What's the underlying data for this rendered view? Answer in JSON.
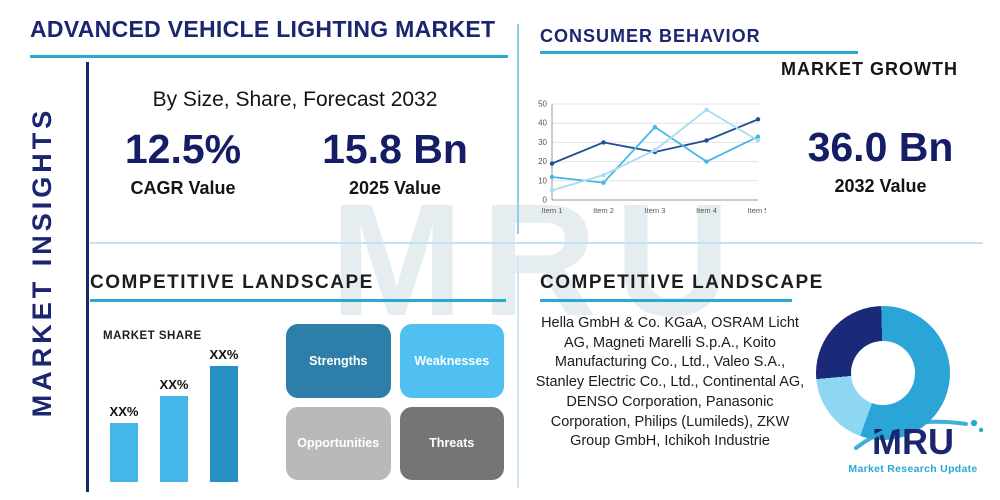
{
  "watermark": {
    "text": "MRU"
  },
  "sidebar": {
    "label": "MARKET INSIGHTS"
  },
  "header": {
    "title": "ADVANCED VEHICLE LIGHTING MARKET",
    "subtitle": "By Size, Share, Forecast 2032"
  },
  "stats": {
    "cagr": {
      "value": "12.5%",
      "label": "CAGR Value"
    },
    "y2025": {
      "value": "15.8 Bn",
      "label": "2025 Value"
    },
    "y2032": {
      "value": "36.0 Bn",
      "label": "2032 Value"
    }
  },
  "consumer_behavior": {
    "title": "CONSUMER BEHAVIOR",
    "subtitle": "MARKET GROWTH"
  },
  "chart_data": [
    {
      "type": "line",
      "title": "Consumer behavior / market growth trend",
      "x": [
        "Item 1",
        "Item 2",
        "Item 3",
        "Item 4",
        "Item 5"
      ],
      "series": [
        {
          "name": "series-dark-blue",
          "color": "#1f4e96",
          "values": [
            19,
            30,
            25,
            31,
            42
          ]
        },
        {
          "name": "series-light-blue",
          "color": "#45b6e8",
          "values": [
            12,
            9,
            38,
            20,
            33
          ]
        },
        {
          "name": "series-pale-blue",
          "color": "#a9dcf2",
          "values": [
            5,
            13,
            26,
            47,
            31
          ]
        }
      ],
      "ylim": [
        0,
        50
      ],
      "yticks": [
        0,
        10,
        20,
        30,
        40,
        50
      ],
      "grid": true,
      "xlabel": "",
      "ylabel": "",
      "legend": "none"
    },
    {
      "type": "bar",
      "title": "MARKET SHARE",
      "categories": [
        "bar-1",
        "bar-2",
        "bar-3"
      ],
      "labels": [
        "XX%",
        "XX%",
        "XX%"
      ],
      "values": [
        28,
        41,
        55
      ],
      "ylim": [
        0,
        56
      ],
      "colors": [
        "#45b6e8",
        "#45b6e8",
        "#2691c4"
      ],
      "grid": false
    },
    {
      "type": "pie",
      "title": "Competitive landscape share (donut)",
      "donut": true,
      "slices": [
        {
          "name": "segment-light-blue",
          "value": 18,
          "color": "#8ed7f3"
        },
        {
          "name": "segment-navy",
          "value": 26,
          "color": "#1b2a78"
        },
        {
          "name": "segment-teal",
          "value": 56,
          "color": "#2ba4d8"
        }
      ]
    }
  ],
  "landscape_left": {
    "title": "COMPETITIVE LANDSCAPE",
    "market_share_title": "MARKET SHARE",
    "swot": [
      {
        "label": "Strengths",
        "color": "#2d7fa9"
      },
      {
        "label": "Weaknesses",
        "color": "#4fc0ef"
      },
      {
        "label": "Opportunities",
        "color": "#b9b9b9"
      },
      {
        "label": "Threats",
        "color": "#757575"
      }
    ]
  },
  "landscape_right": {
    "title": "COMPETITIVE LANDSCAPE",
    "companies": "Hella GmbH & Co. KGaA, OSRAM Licht AG, Magneti Marelli S.p.A., Koito Manufacturing Co., Ltd., Valeo S.A., Stanley Electric Co., Ltd., Continental AG, DENSO Corporation, Panasonic Corporation, Philips (Lumileds), ZKW Group GmbH, Ichikoh Industrie"
  },
  "logo": {
    "text": "MRU",
    "tagline": "Market Research Update"
  },
  "colors": {
    "accent": "#2aa7d4",
    "navy": "#1b2570",
    "stat_navy": "#141d66",
    "divider": "#bfe3f2"
  }
}
